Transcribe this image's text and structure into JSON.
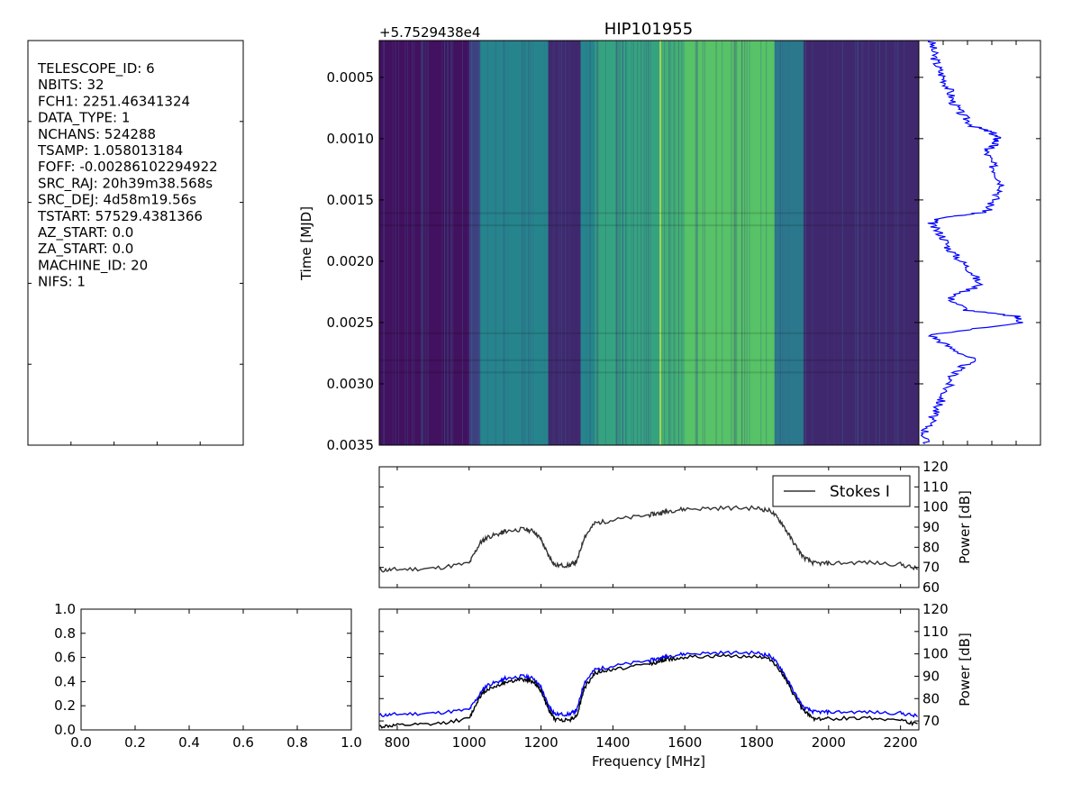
{
  "figure": {
    "title": "HIP101955",
    "header_lines": [
      "TELESCOPE_ID:  6",
      "NBITS:  32",
      "FCH1:  2251.46341324",
      "DATA_TYPE:  1",
      "NCHANS:  524288",
      "TSAMP:  1.058013184",
      "FOFF:  -0.00286102294922",
      "SRC_RAJ:  20h39m38.568s",
      "SRC_DEJ:  4d58m19.56s",
      "TSTART:  57529.4381366",
      "AZ_START:  0.0",
      "ZA_START:  0.0",
      "MACHINE_ID:  20",
      "NIFS:  1"
    ]
  },
  "chart_data": [
    {
      "id": "waterfall",
      "type": "heatmap",
      "title": "HIP101955",
      "ylabel": "Time [MJD]",
      "offset_label": "+5.7529438e4",
      "xlim": [
        750,
        2251
      ],
      "ylim": [
        0.0035,
        0.0002
      ],
      "yticks": [
        0.0005,
        0.001,
        0.0015,
        0.002,
        0.0025,
        0.003,
        0.0035
      ],
      "ytick_labels": [
        "0.0005",
        "0.0010",
        "0.0015",
        "0.0020",
        "0.0025",
        "0.0030",
        "0.0035"
      ],
      "band_levels": [
        {
          "f0": 750,
          "f1": 1000,
          "level": 0.05
        },
        {
          "f0": 1000,
          "f1": 1030,
          "level": 0.2
        },
        {
          "f0": 1030,
          "f1": 1220,
          "level": 0.45
        },
        {
          "f0": 1220,
          "f1": 1310,
          "level": 0.12
        },
        {
          "f0": 1310,
          "f1": 1350,
          "level": 0.45
        },
        {
          "f0": 1350,
          "f1": 1530,
          "level": 0.58
        },
        {
          "f0": 1530,
          "f1": 1600,
          "level": 0.64
        },
        {
          "f0": 1600,
          "f1": 1850,
          "level": 0.72
        },
        {
          "f0": 1850,
          "f1": 1930,
          "level": 0.4
        },
        {
          "f0": 1930,
          "f1": 2251,
          "level": 0.12
        }
      ],
      "colormap": [
        "#440154",
        "#3b528b",
        "#21918c",
        "#5ec962",
        "#fde725"
      ]
    },
    {
      "id": "time_series",
      "type": "line",
      "orientation": "vertical",
      "color": "#0000ff",
      "y": [
        0.0002,
        0.0003,
        0.0004,
        0.0005,
        0.0006,
        0.0007,
        0.0008,
        0.0009,
        0.00095,
        0.001,
        0.00105,
        0.0011,
        0.0012,
        0.0013,
        0.0014,
        0.0015,
        0.0016,
        0.00165,
        0.0017,
        0.0018,
        0.0019,
        0.002,
        0.0021,
        0.0022,
        0.0023,
        0.0024,
        0.00245,
        0.0025,
        0.0026,
        0.0027,
        0.0028,
        0.0029,
        0.003,
        0.0031,
        0.0032,
        0.0033,
        0.0034,
        0.0035
      ],
      "x": [
        0.1,
        0.12,
        0.15,
        0.2,
        0.25,
        0.28,
        0.35,
        0.45,
        0.6,
        0.65,
        0.62,
        0.55,
        0.6,
        0.65,
        0.7,
        0.62,
        0.55,
        0.15,
        0.1,
        0.2,
        0.25,
        0.35,
        0.45,
        0.5,
        0.25,
        0.4,
        0.8,
        0.85,
        0.1,
        0.25,
        0.45,
        0.3,
        0.25,
        0.2,
        0.15,
        0.1,
        0.05,
        0.05
      ]
    },
    {
      "id": "spectrum",
      "type": "line",
      "ylabel": "Power [dB]",
      "ylim": [
        60,
        120
      ],
      "yticks": [
        60,
        70,
        80,
        90,
        100,
        110,
        120
      ],
      "xlim": [
        750,
        2251
      ],
      "legend": {
        "label": "Stokes I",
        "position": "upper right"
      },
      "series": [
        {
          "name": "Stokes I",
          "color": "#333333",
          "x": [
            750,
            800,
            900,
            1000,
            1030,
            1050,
            1090,
            1100,
            1150,
            1180,
            1200,
            1220,
            1240,
            1280,
            1300,
            1320,
            1350,
            1400,
            1500,
            1530,
            1550,
            1600,
            1700,
            1800,
            1840,
            1870,
            1900,
            1930,
            1960,
            2000,
            2100,
            2200,
            2251
          ],
          "y": [
            68.5,
            69,
            69.5,
            72,
            82,
            85,
            87,
            88,
            89,
            88,
            84,
            76,
            71,
            71,
            73,
            85,
            92,
            93.5,
            96,
            97,
            98,
            99,
            99.5,
            99.5,
            98,
            92,
            83,
            75,
            72,
            72,
            72.5,
            71.5,
            69
          ]
        }
      ]
    },
    {
      "id": "spectrum_minmax",
      "type": "line",
      "xlabel": "Frequency [MHz]",
      "ylabel": "Power [dB]",
      "ylim": [
        66,
        120
      ],
      "yticks": [
        70,
        80,
        90,
        100,
        110,
        120
      ],
      "xlim": [
        750,
        2251
      ],
      "xticks": [
        800,
        1000,
        1200,
        1400,
        1600,
        1800,
        2000,
        2200
      ],
      "series": [
        {
          "color": "#0000ff",
          "x": [
            750,
            800,
            900,
            1000,
            1030,
            1050,
            1090,
            1100,
            1150,
            1180,
            1200,
            1220,
            1240,
            1280,
            1300,
            1320,
            1350,
            1400,
            1500,
            1530,
            1550,
            1600,
            1700,
            1800,
            1840,
            1870,
            1900,
            1930,
            1960,
            2000,
            2100,
            2200,
            2251
          ],
          "y": [
            72.5,
            73,
            73.5,
            75,
            82,
            86,
            88,
            89,
            90,
            89,
            85,
            77,
            73,
            73,
            75,
            87,
            93,
            94.5,
            97,
            98,
            99,
            100,
            100.5,
            100.5,
            99,
            93,
            84,
            76,
            74,
            74,
            74,
            73.5,
            72
          ]
        },
        {
          "color": "#000000",
          "x": [
            750,
            800,
            900,
            1000,
            1030,
            1050,
            1090,
            1100,
            1150,
            1180,
            1200,
            1220,
            1240,
            1280,
            1300,
            1320,
            1350,
            1400,
            1500,
            1530,
            1550,
            1600,
            1700,
            1800,
            1840,
            1870,
            1900,
            1930,
            1960,
            2000,
            2100,
            2200,
            2251
          ],
          "y": [
            67.5,
            68,
            68.5,
            71,
            81,
            84,
            86.5,
            87.5,
            88.5,
            87.5,
            83.5,
            75.5,
            70.5,
            70.5,
            72.5,
            84.5,
            91.5,
            93,
            95.5,
            96.5,
            97.5,
            98.5,
            99,
            99,
            97.5,
            91.5,
            82.5,
            74.5,
            71,
            71,
            71.5,
            70.5,
            68
          ]
        }
      ]
    },
    {
      "id": "empty_axes",
      "type": "line",
      "xlim": [
        0,
        1
      ],
      "ylim": [
        0,
        1
      ],
      "xticks": [
        0.0,
        0.2,
        0.4,
        0.6,
        0.8,
        1.0
      ],
      "yticks": [
        0.0,
        0.2,
        0.4,
        0.6,
        0.8,
        1.0
      ],
      "series": []
    }
  ]
}
